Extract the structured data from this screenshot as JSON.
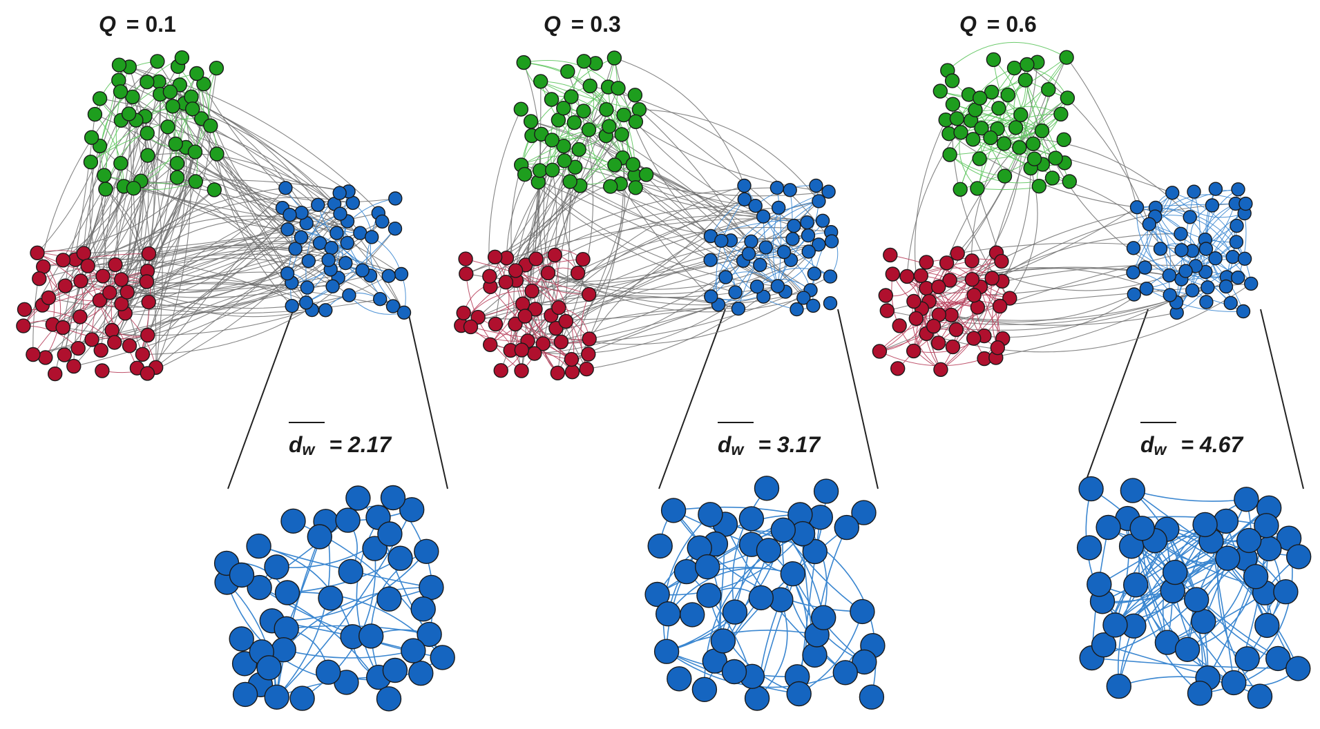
{
  "panels": [
    {
      "q_symbol": "Q",
      "q_text": "= 0.1",
      "dw_symbol": "d",
      "dw_sub": "w",
      "dw_text": "= 2.17",
      "inter_edges": 150,
      "intra_edges": 35
    },
    {
      "q_symbol": "Q",
      "q_text": "= 0.3",
      "dw_symbol": "d",
      "dw_sub": "w",
      "dw_text": "= 3.17",
      "inter_edges": 100,
      "intra_edges": 50
    },
    {
      "q_symbol": "Q",
      "q_text": "= 0.6",
      "dw_symbol": "d",
      "dw_sub": "w",
      "dw_text": "= 4.67",
      "inter_edges": 40,
      "intra_edges": 75
    }
  ],
  "colors": {
    "green_node": "#1e9e1e",
    "green_edge": "#5cc45c",
    "red_node": "#b0102e",
    "red_edge": "#b8405c",
    "blue_node": "#1565c0",
    "blue_edge": "#3a86d0",
    "inter_edge": "#6e6e6e",
    "node_outline": "#1a1a1a",
    "zoom_line": "#222222"
  },
  "legend_groups": [
    "green-community",
    "red-community",
    "blue-community"
  ]
}
